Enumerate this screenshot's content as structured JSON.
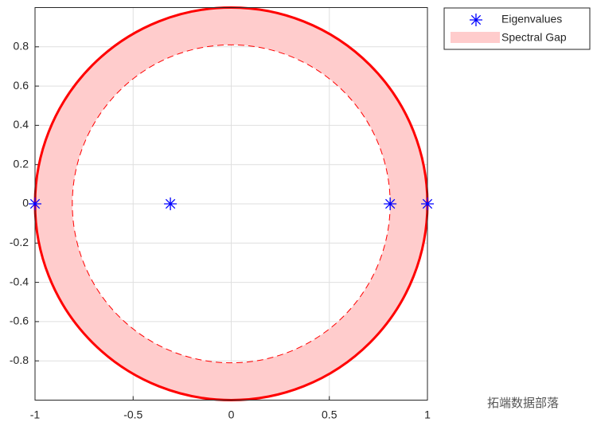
{
  "chart_data": {
    "type": "scatter",
    "series": [
      {
        "name": "Eigenvalues",
        "color": "#0000ff",
        "x": [
          -1,
          -0.31,
          0.81,
          1
        ],
        "y": [
          0,
          0,
          0,
          0
        ]
      }
    ],
    "spectral_gap": {
      "name": "Spectral Gap",
      "color": "#ffcccc",
      "edge_color": "#ff0000",
      "inner_radius": 0.81,
      "outer_radius": 1
    },
    "xlim": [
      -1,
      1
    ],
    "ylim": [
      -1,
      1
    ],
    "xticks": [
      -1,
      -0.5,
      0,
      0.5,
      1
    ],
    "yticks": [
      -0.8,
      -0.6,
      -0.4,
      -0.2,
      0,
      0.2,
      0.4,
      0.6,
      0.8
    ],
    "grid": true,
    "legend": "northeastoutside",
    "watermark": "拓端数据部落"
  }
}
